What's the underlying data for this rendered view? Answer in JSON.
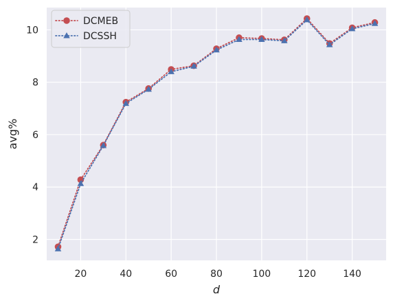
{
  "chart_data": {
    "type": "line",
    "title": "",
    "xlabel": "d",
    "ylabel": "avg%",
    "xlim": [
      5,
      155
    ],
    "ylim": [
      1.2,
      10.85
    ],
    "xticks": [
      20,
      40,
      60,
      80,
      100,
      120,
      140
    ],
    "yticks": [
      2,
      4,
      6,
      8,
      10
    ],
    "grid": true,
    "legend_position": "top-left",
    "x": [
      10,
      20,
      30,
      40,
      50,
      60,
      70,
      80,
      90,
      100,
      110,
      120,
      130,
      140,
      150
    ],
    "series": [
      {
        "name": "DCMEB",
        "color": "#c44e52",
        "marker": "circle",
        "linestyle": "dotted",
        "values": [
          1.72,
          4.28,
          5.6,
          7.24,
          7.76,
          8.49,
          8.63,
          9.28,
          9.7,
          9.67,
          9.62,
          10.43,
          9.48,
          10.08,
          10.28
        ]
      },
      {
        "name": "DCSSH",
        "color": "#4c72b0",
        "marker": "triangle",
        "linestyle": "dotted",
        "values": [
          1.64,
          4.13,
          5.58,
          7.19,
          7.73,
          8.4,
          8.61,
          9.23,
          9.63,
          9.63,
          9.58,
          10.38,
          9.43,
          10.04,
          10.24
        ]
      }
    ]
  },
  "colors": {
    "plot_background": "#eaeaf2",
    "grid": "#ffffff",
    "text": "#262626"
  }
}
